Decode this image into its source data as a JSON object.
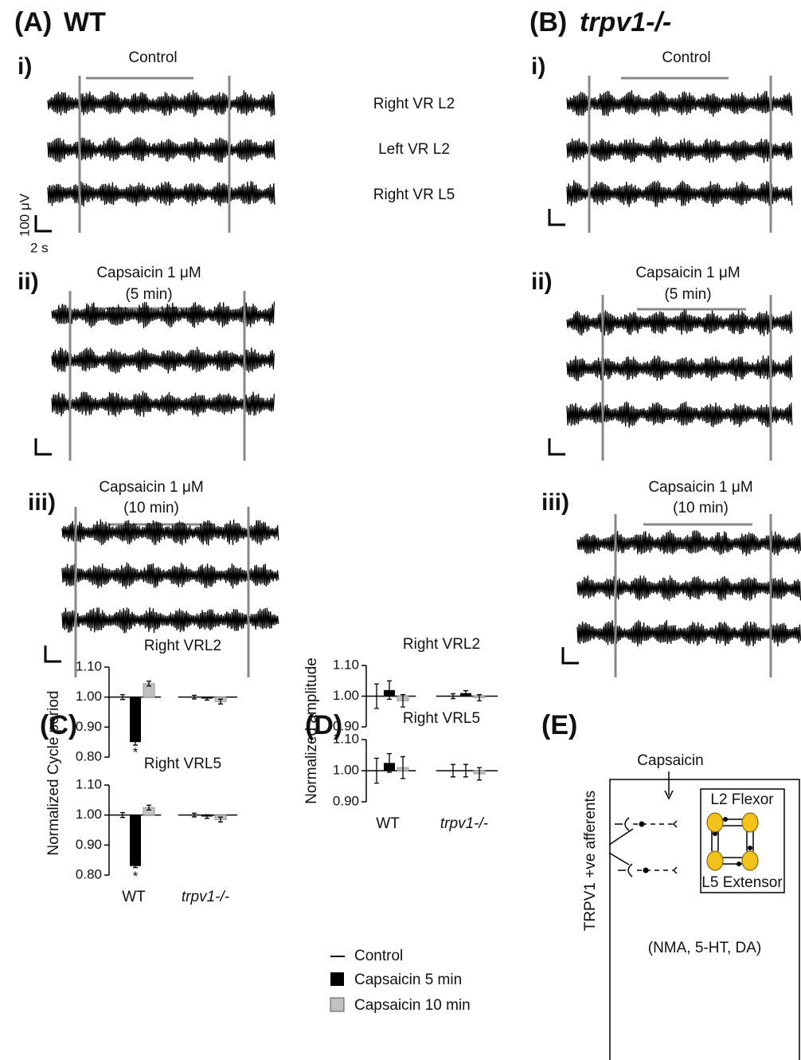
{
  "figure": {
    "A": {
      "label": "(A)",
      "genotype": "WT",
      "sections": [
        {
          "numeral": "i)",
          "condition": [
            "Control"
          ]
        },
        {
          "numeral": "ii)",
          "condition": [
            "Capsaicin 1 μM",
            "(5 min)"
          ]
        },
        {
          "numeral": "iii)",
          "condition": [
            "Capsaicin 1 μM",
            "(10 min)"
          ]
        }
      ],
      "scale": {
        "amplitude": "100 μV",
        "time": "2 s"
      }
    },
    "B": {
      "label": "(B)",
      "genotype": "trpv1-/-",
      "sections": [
        {
          "numeral": "i)",
          "condition": [
            "Control"
          ]
        },
        {
          "numeral": "ii)",
          "condition": [
            "Capsaicin 1 μM",
            "(5 min)"
          ]
        },
        {
          "numeral": "iii)",
          "condition": [
            "Capsaicin 1 μM",
            "(10 min)"
          ]
        }
      ]
    },
    "roots": [
      "Right VR L2",
      "Left VR L2",
      "Right VR L5"
    ],
    "C": {
      "label": "(C)",
      "ylabel": "Normalized Cycle period"
    },
    "D": {
      "label": "(D)",
      "ylabel": "Normalized amplitude"
    },
    "E": {
      "label": "(E)",
      "stimulus": "Capsaicin",
      "afferents": "TRPV1 +ve afferents",
      "flexor": "L2 Flexor",
      "extensor": "L5 Extensor",
      "drugs": "(NMA, 5-HT, DA)"
    }
  },
  "chart_data": [
    {
      "type": "bar",
      "title": "Right VRL2",
      "categories": [
        null,
        null
      ],
      "annotation": "*",
      "ylim": [
        0.8,
        1.1
      ],
      "yticks": [
        {
          "value": 0.8,
          "label": "0.80"
        },
        {
          "value": 0.9,
          "label": "0.90"
        },
        {
          "value": 1.0,
          "label": "1.00"
        },
        {
          "value": 1.1,
          "label": "1.10"
        }
      ],
      "series": [
        {
          "name": "Control",
          "color": "#000000",
          "values": [
            1.0,
            1.0
          ],
          "errors": [
            0.008,
            0.006
          ]
        },
        {
          "name": "Capsaicin 5 min",
          "color": "#000000",
          "values": [
            0.85,
            0.995
          ],
          "errors": [
            0.01,
            0.005
          ]
        },
        {
          "name": "Capsaicin 10 min",
          "color": "#c0c0c0",
          "values": [
            1.045,
            0.985
          ],
          "errors": [
            0.008,
            0.008
          ]
        }
      ]
    },
    {
      "type": "bar",
      "title": "Right VRL5",
      "categories": [
        "WT",
        "trpv1-/-"
      ],
      "annotation": "*",
      "ylim": [
        0.8,
        1.1
      ],
      "yticks": [
        {
          "value": 0.8,
          "label": "0.80"
        },
        {
          "value": 0.9,
          "label": "0.90"
        },
        {
          "value": 1.0,
          "label": "1.00"
        },
        {
          "value": 1.1,
          "label": "1.10"
        }
      ],
      "series": [
        {
          "name": "Control",
          "color": "#000000",
          "values": [
            1.0,
            1.0
          ],
          "errors": [
            0.008,
            0.006
          ]
        },
        {
          "name": "Capsaicin 5 min",
          "color": "#000000",
          "values": [
            0.83,
            0.995
          ],
          "errors": [
            0.005,
            0.006
          ]
        },
        {
          "name": "Capsaicin 10 min",
          "color": "#c0c0c0",
          "values": [
            1.025,
            0.985
          ],
          "errors": [
            0.008,
            0.008
          ]
        }
      ]
    },
    {
      "type": "bar",
      "title": "Right VRL2",
      "categories": [
        null,
        null
      ],
      "ylim": [
        0.9,
        1.1
      ],
      "yticks": [
        {
          "value": 0.9,
          "label": "0.90"
        },
        {
          "value": 1.0,
          "label": "1.00"
        },
        {
          "value": 1.1,
          "label": "1.10"
        }
      ],
      "series": [
        {
          "name": "Control",
          "color": "#000000",
          "values": [
            1.0,
            1.0
          ],
          "errors": [
            0.04,
            0.008
          ]
        },
        {
          "name": "Capsaicin 5 min",
          "color": "#000000",
          "values": [
            1.02,
            1.01
          ],
          "errors": [
            0.03,
            0.008
          ]
        },
        {
          "name": "Capsaicin 10 min",
          "color": "#c0c0c0",
          "values": [
            0.985,
            0.995
          ],
          "errors": [
            0.02,
            0.01
          ]
        }
      ]
    },
    {
      "type": "bar",
      "title": "Right VRL5",
      "categories": [
        "WT",
        "trpv1-/-"
      ],
      "ylim": [
        0.9,
        1.1
      ],
      "yticks": [
        {
          "value": 0.9,
          "label": "0.90"
        },
        {
          "value": 1.0,
          "label": "1.00"
        },
        {
          "value": 1.1,
          "label": "1.10"
        }
      ],
      "series": [
        {
          "name": "Control",
          "color": "#000000",
          "values": [
            1.0,
            1.0
          ],
          "errors": [
            0.04,
            0.02
          ]
        },
        {
          "name": "Capsaicin 5 min",
          "color": "#000000",
          "values": [
            1.025,
            1.0
          ],
          "errors": [
            0.03,
            0.02
          ]
        },
        {
          "name": "Capsaicin 10 min",
          "color": "#c0c0c0",
          "values": [
            1.01,
            0.99
          ],
          "errors": [
            0.035,
            0.02
          ]
        }
      ]
    }
  ]
}
